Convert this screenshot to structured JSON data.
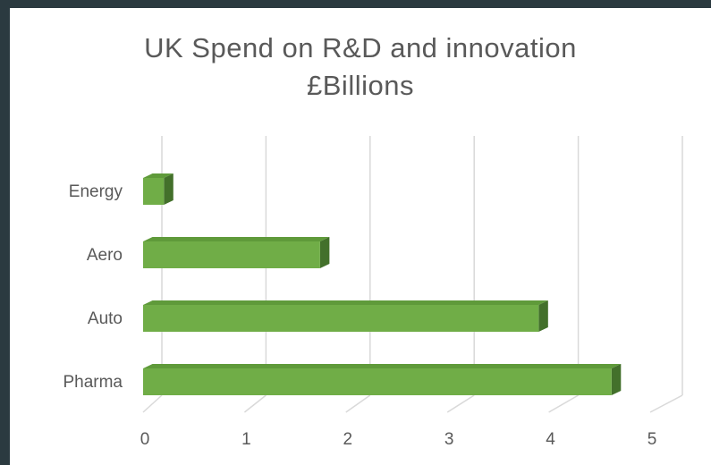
{
  "chart_data": {
    "type": "bar",
    "orientation": "horizontal",
    "style": "3d",
    "title_lines": [
      "UK Spend on R&D and innovation",
      "£Billions"
    ],
    "categories": [
      "Energy",
      "Aero",
      "Auto",
      "Pharma"
    ],
    "values": [
      0.2,
      1.7,
      3.8,
      4.5
    ],
    "xlim": [
      0,
      5
    ],
    "xticks": [
      "0",
      "1",
      "2",
      "3",
      "4",
      "5"
    ],
    "grid": true,
    "legend": "none",
    "colors": {
      "bar_front": "#70ad47",
      "bar_top": "#5f9a3a",
      "bar_side": "#43702b",
      "grid": "#d9d9d9",
      "text": "#595959"
    }
  }
}
